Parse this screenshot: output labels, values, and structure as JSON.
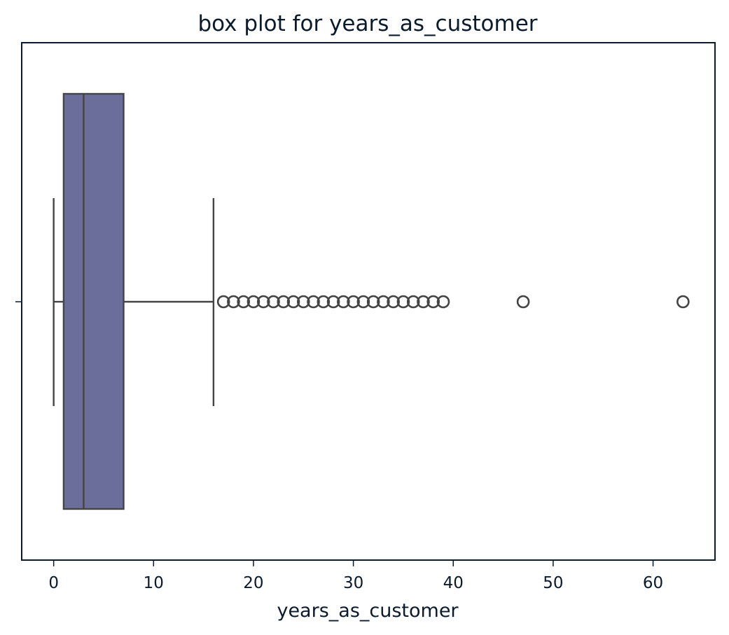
{
  "chart_data": {
    "type": "box",
    "title": "box plot for years_as_customer",
    "xlabel": "years_as_customer",
    "ylabel": "",
    "xlim": [
      -3.2,
      66.2
    ],
    "x_ticks": [
      0,
      10,
      20,
      30,
      40,
      50,
      60
    ],
    "box": {
      "whisker_low": 0,
      "q1": 1,
      "median": 3,
      "q3": 7,
      "whisker_high": 16
    },
    "outliers": [
      17,
      18,
      19,
      20,
      21,
      22,
      23,
      24,
      25,
      26,
      27,
      28,
      29,
      30,
      31,
      32,
      33,
      34,
      35,
      36,
      37,
      38,
      39,
      47,
      63
    ],
    "colors": {
      "box_fill": "#6b6e9b",
      "line": "#444444",
      "axes": "#0b1b2e",
      "text": "#0b1b2e"
    },
    "grid": false
  }
}
